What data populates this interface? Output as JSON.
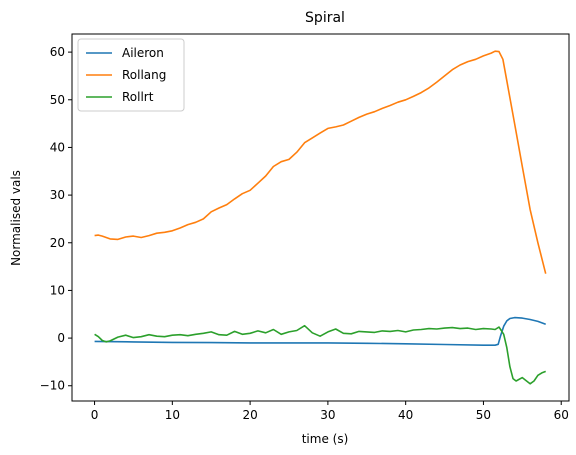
{
  "chart_data": {
    "type": "line",
    "title": "Spiral",
    "xlabel": "time (s)",
    "ylabel": "Normalised vals",
    "xlim": [
      -2.9,
      61
    ],
    "ylim": [
      -13.2,
      63.8
    ],
    "xticks": [
      0,
      10,
      20,
      30,
      40,
      50,
      60
    ],
    "yticks": [
      -10,
      0,
      10,
      20,
      30,
      40,
      50,
      60
    ],
    "grid": false,
    "legend": "top-left",
    "series": [
      {
        "name": "Aileron",
        "color": "#1f77b4",
        "x": [
          0,
          5,
          10,
          15,
          20,
          25,
          30,
          35,
          40,
          45,
          50,
          51.5,
          51.9,
          52.2,
          52.6,
          53,
          53.4,
          54,
          55,
          56,
          57,
          58
        ],
        "y": [
          -0.7,
          -0.8,
          -0.9,
          -0.95,
          -1.0,
          -1.0,
          -1.0,
          -1.1,
          -1.2,
          -1.35,
          -1.5,
          -1.5,
          -1.3,
          0.5,
          2.5,
          3.6,
          4.1,
          4.3,
          4.2,
          3.9,
          3.5,
          2.9
        ]
      },
      {
        "name": "Rollang",
        "color": "#ff7f0e",
        "x": [
          0,
          0.5,
          1,
          2,
          3,
          4,
          5,
          6,
          7,
          8,
          9,
          10,
          11,
          12,
          13,
          14,
          15,
          16,
          17,
          18,
          19,
          20,
          21,
          22,
          23,
          24,
          25,
          26,
          27,
          28,
          29,
          30,
          31,
          32,
          33,
          34,
          35,
          36,
          37,
          38,
          39,
          40,
          41,
          42,
          43,
          44,
          45,
          46,
          47,
          48,
          49,
          50,
          51,
          51.5,
          52,
          52.5,
          53,
          54,
          55,
          56,
          57,
          58
        ],
        "y": [
          21.5,
          21.6,
          21.4,
          20.8,
          20.7,
          21.2,
          21.4,
          21.1,
          21.5,
          22.0,
          22.2,
          22.5,
          23.1,
          23.8,
          24.3,
          25.0,
          26.5,
          27.3,
          28.0,
          29.2,
          30.3,
          31.0,
          32.5,
          34.0,
          36.0,
          37.0,
          37.5,
          39.0,
          41.0,
          42.0,
          43.0,
          44.0,
          44.3,
          44.7,
          45.5,
          46.3,
          47.0,
          47.5,
          48.2,
          48.8,
          49.5,
          50.0,
          50.7,
          51.5,
          52.5,
          53.7,
          55.0,
          56.3,
          57.3,
          58.0,
          58.5,
          59.2,
          59.8,
          60.2,
          60.1,
          58.5,
          54.0,
          45.0,
          36.0,
          27.0,
          20.0,
          13.5
        ]
      },
      {
        "name": "Rollrt",
        "color": "#2ca02c",
        "x": [
          0,
          0.5,
          1,
          1.5,
          2,
          3,
          4,
          5,
          6,
          7,
          8,
          9,
          10,
          11,
          12,
          13,
          14,
          15,
          16,
          17,
          18,
          19,
          20,
          21,
          22,
          23,
          24,
          25,
          26,
          27,
          28,
          29,
          30,
          31,
          32,
          33,
          34,
          35,
          36,
          37,
          38,
          39,
          40,
          41,
          42,
          43,
          44,
          45,
          46,
          47,
          48,
          49,
          50,
          51,
          51.5,
          52,
          52.3,
          52.6,
          53,
          53.4,
          53.8,
          54.2,
          55,
          56,
          56.5,
          57,
          57.5,
          58
        ],
        "y": [
          0.8,
          0.3,
          -0.5,
          -0.8,
          -0.6,
          0.2,
          0.6,
          0.1,
          0.3,
          0.7,
          0.4,
          0.3,
          0.6,
          0.7,
          0.5,
          0.8,
          1.0,
          1.3,
          0.7,
          0.6,
          1.4,
          0.8,
          1.0,
          1.5,
          1.1,
          1.8,
          0.8,
          1.3,
          1.6,
          2.6,
          1.1,
          0.4,
          1.3,
          1.9,
          1.0,
          0.9,
          1.4,
          1.3,
          1.2,
          1.5,
          1.4,
          1.6,
          1.3,
          1.7,
          1.8,
          2.0,
          1.9,
          2.1,
          2.2,
          2.0,
          2.1,
          1.8,
          2.0,
          1.9,
          1.8,
          2.3,
          1.6,
          0.8,
          -2.0,
          -6.0,
          -8.5,
          -9.0,
          -8.3,
          -9.6,
          -9.0,
          -7.8,
          -7.3,
          -7.0
        ]
      }
    ]
  }
}
